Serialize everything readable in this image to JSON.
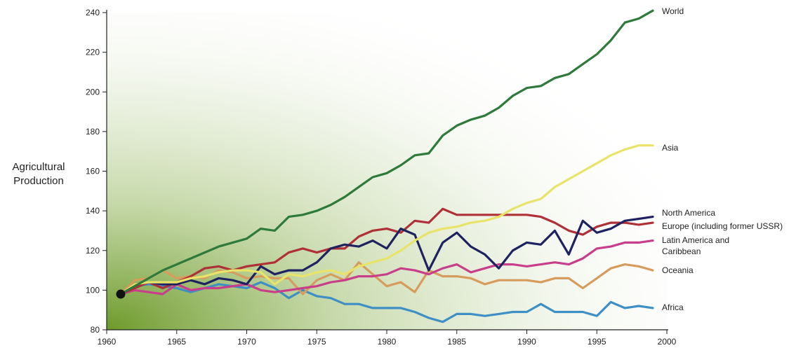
{
  "chart_data": {
    "type": "line",
    "title": "",
    "xlabel": "",
    "ylabel_lines": [
      "Agricultural",
      "Production"
    ],
    "xlim": [
      1960,
      2000
    ],
    "ylim": [
      80,
      240
    ],
    "x_ticks": [
      1960,
      1965,
      1970,
      1975,
      1980,
      1985,
      1990,
      1995,
      2000
    ],
    "y_ticks": [
      80,
      100,
      120,
      140,
      160,
      180,
      200,
      220,
      240
    ],
    "grid": false,
    "legend": "right-end labels",
    "start_point": {
      "x": 1961,
      "y": 98
    },
    "x": [
      1961,
      1962,
      1963,
      1964,
      1965,
      1966,
      1967,
      1968,
      1969,
      1970,
      1971,
      1972,
      1973,
      1974,
      1975,
      1976,
      1977,
      1978,
      1979,
      1980,
      1981,
      1982,
      1983,
      1984,
      1985,
      1986,
      1987,
      1988,
      1989,
      1990,
      1991,
      1992,
      1993,
      1994,
      1995,
      1996,
      1997,
      1998,
      1999
    ],
    "series": [
      {
        "name": "World",
        "label_lines": [
          "World"
        ],
        "color": "#2d7a3a",
        "values": [
          98,
          102,
          106,
          110,
          113,
          116,
          119,
          122,
          124,
          126,
          131,
          130,
          137,
          138,
          140,
          143,
          147,
          152,
          157,
          159,
          163,
          168,
          169,
          178,
          183,
          186,
          188,
          192,
          198,
          202,
          203,
          207,
          209,
          214,
          219,
          226,
          235,
          237,
          241
        ]
      },
      {
        "name": "Asia",
        "label_lines": [
          "Asia"
        ],
        "color": "#e8e46a",
        "values": [
          98,
          103,
          104,
          104,
          104,
          106,
          107,
          109,
          110,
          110,
          109,
          103,
          108,
          107,
          109,
          110,
          108,
          112,
          114,
          116,
          120,
          125,
          129,
          131,
          132,
          134,
          135,
          137,
          141,
          144,
          146,
          152,
          156,
          160,
          164,
          168,
          171,
          173,
          173
        ]
      },
      {
        "name": "North America",
        "label_lines": [
          "North America"
        ],
        "color": "#1f2260",
        "values": [
          98,
          103,
          104,
          103,
          103,
          105,
          103,
          106,
          105,
          103,
          112,
          108,
          110,
          110,
          114,
          121,
          123,
          122,
          125,
          121,
          131,
          128,
          110,
          124,
          129,
          122,
          118,
          111,
          120,
          124,
          123,
          130,
          118,
          135,
          129,
          131,
          135,
          136,
          137
        ]
      },
      {
        "name": "Europe (including former USSR)",
        "label_lines": [
          "Europe (including former USSR)"
        ],
        "color": "#b03038",
        "values": [
          98,
          101,
          104,
          101,
          104,
          107,
          111,
          112,
          110,
          112,
          113,
          114,
          119,
          121,
          119,
          121,
          121,
          127,
          130,
          131,
          129,
          135,
          134,
          141,
          138,
          138,
          138,
          138,
          138,
          138,
          137,
          134,
          130,
          128,
          132,
          134,
          134,
          133,
          134
        ]
      },
      {
        "name": "Latin America and Caribbean",
        "label_lines": [
          "Latin America and",
          "Caribbean"
        ],
        "color": "#c83e8a",
        "values": [
          98,
          100,
          99,
          98,
          103,
          100,
          101,
          101,
          102,
          103,
          100,
          99,
          100,
          101,
          102,
          104,
          105,
          107,
          107,
          108,
          111,
          110,
          108,
          111,
          113,
          109,
          111,
          113,
          113,
          112,
          113,
          114,
          113,
          116,
          121,
          122,
          124,
          124,
          125
        ]
      },
      {
        "name": "Oceania",
        "label_lines": [
          "Oceania"
        ],
        "color": "#d79c5c",
        "values": [
          98,
          105,
          106,
          110,
          106,
          107,
          106,
          110,
          109,
          106,
          107,
          106,
          106,
          98,
          105,
          108,
          105,
          114,
          108,
          102,
          104,
          99,
          110,
          107,
          107,
          106,
          103,
          105,
          105,
          105,
          104,
          106,
          106,
          101,
          106,
          111,
          113,
          112,
          110
        ]
      },
      {
        "name": "Africa",
        "label_lines": [
          "Africa"
        ],
        "color": "#3d8fc4",
        "values": [
          98,
          102,
          103,
          102,
          101,
          99,
          101,
          103,
          102,
          101,
          104,
          101,
          96,
          100,
          97,
          96,
          93,
          93,
          91,
          91,
          91,
          89,
          86,
          84,
          88,
          88,
          87,
          88,
          89,
          89,
          93,
          89,
          89,
          89,
          87,
          94,
          91,
          92,
          91
        ]
      }
    ]
  }
}
